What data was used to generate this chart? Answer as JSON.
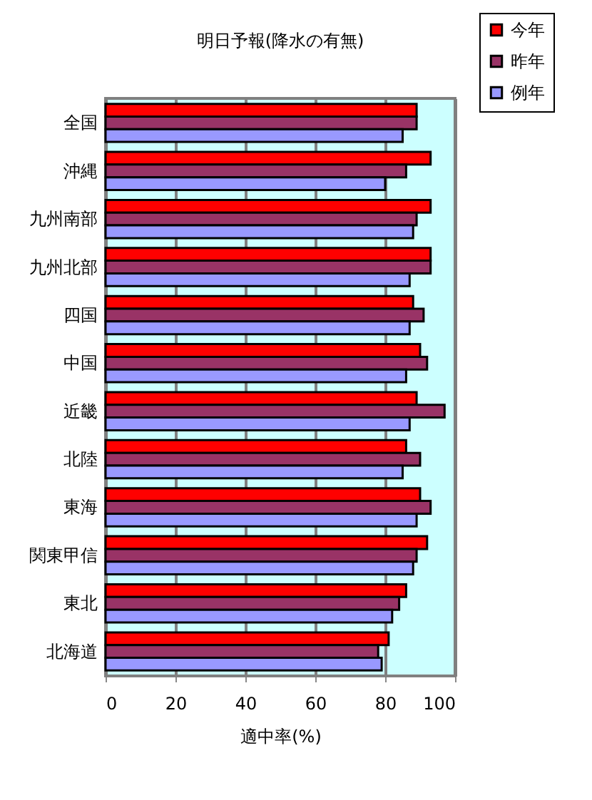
{
  "chart_data": {
    "type": "bar",
    "orientation": "horizontal",
    "title": "明日予報(降水の有無)",
    "xlabel": "適中率(%)",
    "categories": [
      "全国",
      "沖縄",
      "九州南部",
      "九州北部",
      "四国",
      "中国",
      "近畿",
      "北陸",
      "東海",
      "関東甲信",
      "東北",
      "北海道"
    ],
    "series": [
      {
        "name": "今年",
        "color": "#ff0000",
        "values": [
          89,
          93,
          93,
          93,
          88,
          90,
          89,
          86,
          90,
          92,
          86,
          81
        ]
      },
      {
        "name": "昨年",
        "color": "#993366",
        "values": [
          89,
          86,
          89,
          93,
          91,
          92,
          97,
          90,
          93,
          89,
          84,
          78
        ]
      },
      {
        "name": "例年",
        "color": "#9999ff",
        "values": [
          85,
          80,
          88,
          87,
          87,
          86,
          87,
          85,
          89,
          88,
          82,
          79
        ]
      }
    ],
    "xlim": [
      0,
      100
    ],
    "xticks": [
      0,
      20,
      40,
      60,
      80,
      100
    ],
    "grid": "x",
    "legend": "top right"
  }
}
